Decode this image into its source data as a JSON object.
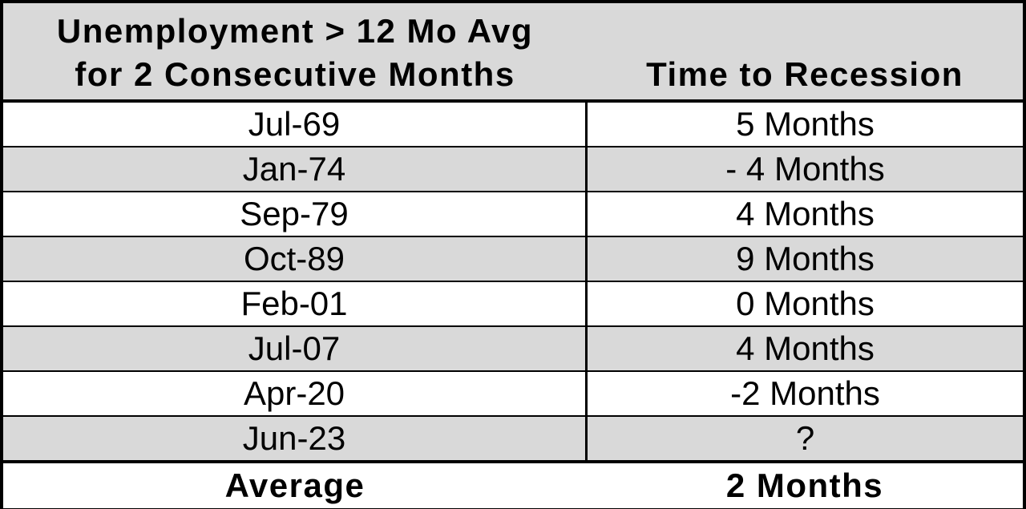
{
  "table": {
    "header": {
      "left_line1": "Unemployment  > 12 Mo Avg",
      "left_line2": "for 2 Consecutive Months",
      "right": "Time to Recession"
    },
    "rows": [
      {
        "date": "Jul-69",
        "time": "5 Months"
      },
      {
        "date": "Jan-74",
        "time": "- 4 Months"
      },
      {
        "date": "Sep-79",
        "time": "4 Months"
      },
      {
        "date": "Oct-89",
        "time": "9 Months"
      },
      {
        "date": "Feb-01",
        "time": "0 Months"
      },
      {
        "date": "Jul-07",
        "time": "4 Months"
      },
      {
        "date": "Apr-20",
        "time": "-2 Months"
      },
      {
        "date": "Jun-23",
        "time": "?"
      }
    ],
    "footer": {
      "label": "Average",
      "value": "2 Months"
    }
  },
  "colors": {
    "header_bg": "#d9d9d9",
    "alt_row_bg": "#d9d9d9",
    "row_bg": "#ffffff",
    "border": "#000000"
  }
}
